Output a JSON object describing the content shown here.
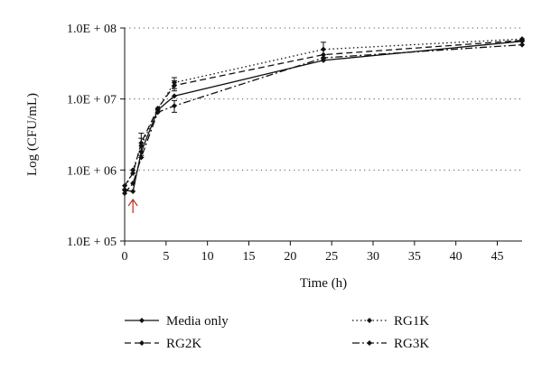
{
  "chart_data": {
    "type": "line",
    "title": "",
    "xlabel": "Time (h)",
    "ylabel": "Log (CFU/mL)",
    "x_scale": "linear",
    "y_scale": "log",
    "xlim": [
      0,
      48
    ],
    "ylim": [
      100000,
      100000000
    ],
    "x_ticks": [
      0,
      5,
      10,
      15,
      20,
      25,
      30,
      35,
      40,
      45
    ],
    "x_tick_labels": [
      "0",
      "5",
      "10",
      "15",
      "20",
      "25",
      "30",
      "35",
      "40",
      "45"
    ],
    "y_ticks": [
      100000,
      1000000,
      10000000,
      100000000
    ],
    "y_tick_labels": [
      "1.0E + 05",
      "1.0E + 06",
      "1.0E + 07",
      "1.0E + 08"
    ],
    "grid": "horizontal dotted",
    "legend_position": "bottom",
    "x": [
      0,
      1,
      2,
      4,
      6,
      24,
      48
    ],
    "series": [
      {
        "name": "Media only",
        "style": "solid",
        "values": [
          520000,
          500000,
          1800000,
          7000000,
          11000000,
          35000000,
          65000000
        ],
        "errors": [
          0,
          0,
          0,
          0,
          0,
          0,
          0
        ]
      },
      {
        "name": "RG1K",
        "style": "dotted",
        "values": [
          530000,
          1000000,
          2200000,
          7200000,
          17000000,
          50000000,
          70000000
        ],
        "errors": [
          0,
          0,
          600000,
          0,
          3000000,
          13000000,
          0
        ]
      },
      {
        "name": "RG2K",
        "style": "dashed",
        "values": [
          600000,
          900000,
          2400000,
          7400000,
          15500000,
          42000000,
          67000000
        ],
        "errors": [
          0,
          0,
          900000,
          0,
          2500000,
          0,
          0
        ]
      },
      {
        "name": "RG3K",
        "style": "dashdot",
        "values": [
          470000,
          650000,
          1500000,
          6500000,
          8000000,
          38000000,
          58000000
        ],
        "errors": [
          0,
          0,
          0,
          0,
          1500000,
          0,
          0
        ]
      }
    ],
    "annotations": [
      {
        "type": "arrow",
        "x": 1,
        "symbol": "↑",
        "color": "#c0392b"
      }
    ]
  }
}
